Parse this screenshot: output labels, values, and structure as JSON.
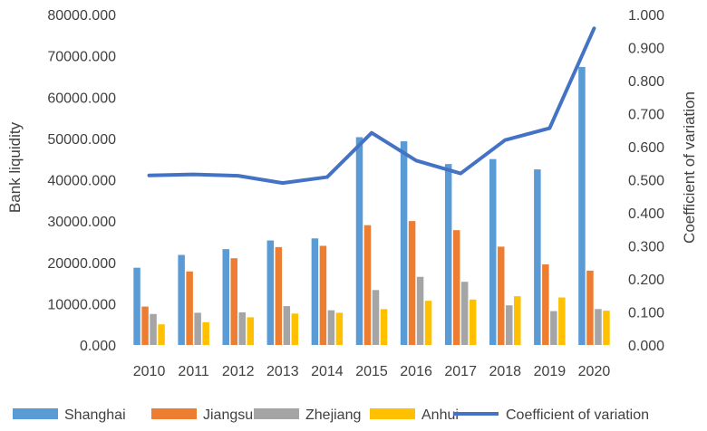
{
  "chart_data": {
    "type": "bar",
    "title": "",
    "categories": [
      "2010",
      "2011",
      "2012",
      "2013",
      "2014",
      "2015",
      "2016",
      "2017",
      "2018",
      "2019",
      "2020"
    ],
    "ylabel": "Bank liquidity",
    "y2label": "Coefficient of variation",
    "ylim": [
      0,
      80000
    ],
    "y2lim": [
      0,
      1.0
    ],
    "yticks": [
      "0.000",
      "10000.000",
      "20000.000",
      "30000.000",
      "40000.000",
      "50000.000",
      "60000.000",
      "70000.000",
      "80000.000"
    ],
    "y2ticks": [
      "0.000",
      "0.100",
      "0.200",
      "0.300",
      "0.400",
      "0.500",
      "0.600",
      "0.700",
      "0.800",
      "0.900",
      "1.000"
    ],
    "grid": false,
    "legend_position": "bottom",
    "series": [
      {
        "name": "Shanghai",
        "color": "#5B9BD5",
        "values": [
          18700,
          21800,
          23200,
          25300,
          25800,
          50300,
          49300,
          43800,
          45000,
          42500,
          67300
        ]
      },
      {
        "name": "Jiangsu",
        "color": "#ED7D31",
        "values": [
          9300,
          17800,
          21000,
          23700,
          24000,
          29000,
          30000,
          27800,
          23800,
          19500,
          18000
        ]
      },
      {
        "name": "Zhejiang",
        "color": "#A5A5A5",
        "values": [
          7500,
          7800,
          7900,
          9400,
          8400,
          13300,
          16500,
          15300,
          9600,
          8200,
          8700
        ]
      },
      {
        "name": "Anhui",
        "color": "#FFC000",
        "values": [
          5000,
          5500,
          6700,
          7600,
          7800,
          8700,
          10700,
          11000,
          11800,
          11500,
          8300
        ]
      }
    ],
    "line_series": {
      "name": "Coefficient of variation",
      "color": "#4472C4",
      "axis": "right",
      "values": [
        0.513,
        0.516,
        0.512,
        0.49,
        0.508,
        0.642,
        0.558,
        0.519,
        0.62,
        0.656,
        0.958
      ]
    }
  }
}
